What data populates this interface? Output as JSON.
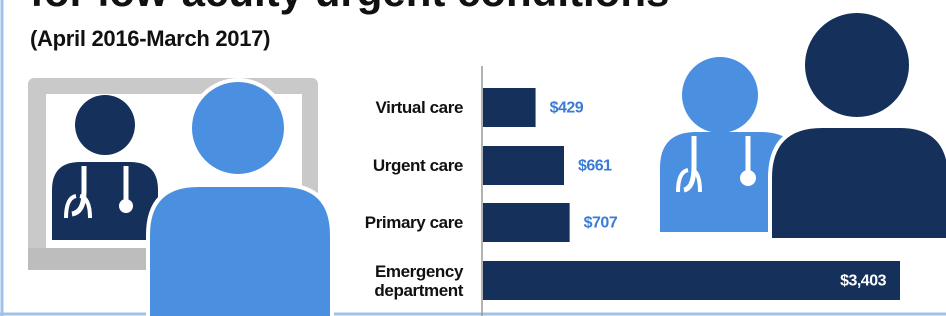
{
  "chart_data": {
    "type": "bar",
    "orientation": "horizontal",
    "title": "for low-acuity urgent conditions",
    "subtitle": "(April 2016-March 2017)",
    "categories": [
      "Virtual care",
      "Urgent care",
      "Primary care",
      "Emergency department"
    ],
    "values": [
      429,
      661,
      707,
      3403
    ],
    "value_labels": [
      "$429",
      "$661",
      "$707",
      "$3,403"
    ],
    "color": "#15305a"
  }
}
